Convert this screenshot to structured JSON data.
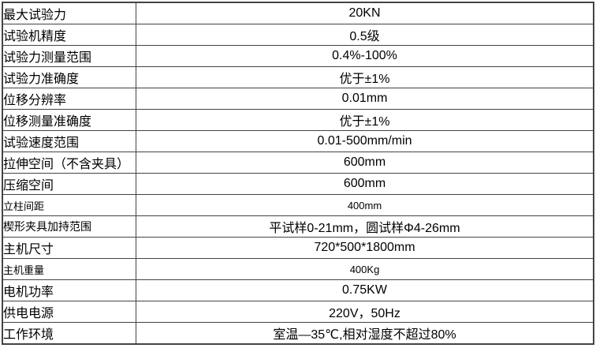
{
  "colors": {
    "background": "#ffffff",
    "table_border": "#444444",
    "text": "#000000"
  },
  "spec_table": {
    "rows": [
      {
        "label": "最大试验力",
        "value": "20KN",
        "label_size": "normal",
        "value_size": "normal"
      },
      {
        "label": "试验机精度",
        "value": "0.5级",
        "label_size": "normal",
        "value_size": "normal"
      },
      {
        "label": "试验力测量范围",
        "value": "0.4%-100%",
        "label_size": "normal",
        "value_size": "normal"
      },
      {
        "label": "试验力准确度",
        "value": "优于±1%",
        "label_size": "normal",
        "value_size": "normal"
      },
      {
        "label": "位移分辨率",
        "value": "0.01mm",
        "label_size": "normal",
        "value_size": "normal"
      },
      {
        "label": "位移测量准确度",
        "value": "优于±1%",
        "label_size": "normal",
        "value_size": "normal"
      },
      {
        "label": "试验速度范围",
        "value": "0.01-500mm/min",
        "label_size": "normal",
        "value_size": "normal"
      },
      {
        "label": "拉伸空间（不含夹具）",
        "value": "600mm",
        "label_size": "normal",
        "value_size": "normal"
      },
      {
        "label": "压缩空间",
        "value": "600mm",
        "label_size": "normal",
        "value_size": "normal"
      },
      {
        "label": "立柱间距",
        "value": "400mm",
        "label_size": "small",
        "value_size": "small"
      },
      {
        "label": "楔形夹具加持范围",
        "value": "平试样0-21mm，圆试样Φ4-26mm",
        "label_size": "medium",
        "value_size": "normal"
      },
      {
        "label": "主机尺寸",
        "value": "720*500*1800mm",
        "label_size": "normal",
        "value_size": "normal"
      },
      {
        "label": "主机重量",
        "value": "400Kg",
        "label_size": "small",
        "value_size": "small"
      },
      {
        "label": "电机功率",
        "value": "0.75KW",
        "label_size": "normal",
        "value_size": "normal"
      },
      {
        "label": "供电电源",
        "value": "220V，50Hz",
        "label_size": "normal",
        "value_size": "normal"
      },
      {
        "label": "工作环境",
        "value": "室温—35℃,相对湿度不超过80%",
        "label_size": "normal",
        "value_size": "normal"
      }
    ]
  }
}
